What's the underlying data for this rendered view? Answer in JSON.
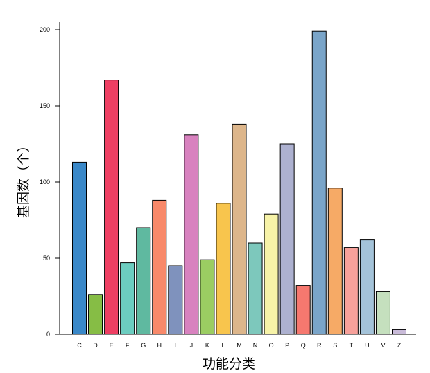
{
  "chart_data": {
    "type": "bar",
    "title": "",
    "xlabel": "功能分类",
    "ylabel": "基因数（个）",
    "ylim": [
      0,
      205
    ],
    "yticks": [
      0,
      50,
      100,
      150,
      200
    ],
    "grid": false,
    "categories": [
      "C",
      "D",
      "E",
      "F",
      "G",
      "H",
      "I",
      "J",
      "K",
      "L",
      "M",
      "N",
      "O",
      "P",
      "Q",
      "R",
      "S",
      "T",
      "U",
      "V",
      "Z"
    ],
    "values": [
      113,
      26,
      167,
      47,
      70,
      88,
      45,
      131,
      49,
      86,
      138,
      60,
      79,
      125,
      32,
      199,
      96,
      57,
      62,
      28,
      3
    ],
    "colors": [
      "#3a88c8",
      "#86bd45",
      "#ee3f63",
      "#6ccdc0",
      "#5fb9a0",
      "#f8896a",
      "#7f92bd",
      "#d882bf",
      "#9bcd62",
      "#f8c54d",
      "#ddb68b",
      "#7dc8bc",
      "#f7f3a8",
      "#adb1d0",
      "#f6786f",
      "#7aa5c9",
      "#f6aa66",
      "#f7a19b",
      "#a4c3d9",
      "#c5e0be",
      "#c9bbd9"
    ]
  }
}
